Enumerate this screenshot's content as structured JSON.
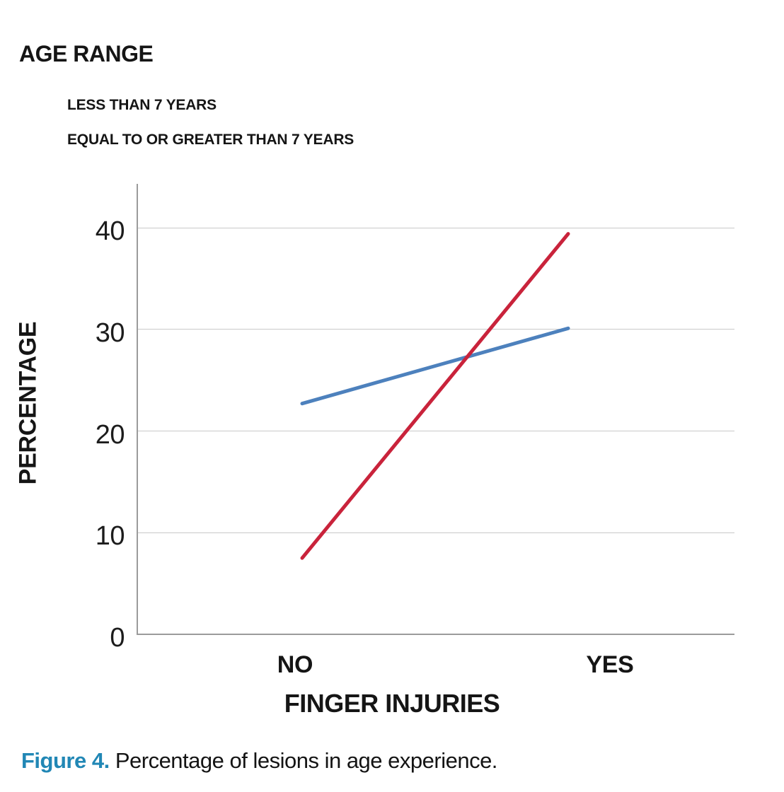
{
  "title": "AGE RANGE",
  "legend": {
    "items": [
      {
        "label": "LESS THAN 7 YEARS",
        "color": "#4d81bd"
      },
      {
        "label": "EQUAL TO OR GREATER THAN 7 YEARS",
        "color": "#c9233b"
      }
    ]
  },
  "chart_data": {
    "type": "line",
    "categories": [
      "NO",
      "YES"
    ],
    "series": [
      {
        "name": "LESS THAN 7 YEARS",
        "color": "#4d81bd",
        "values": [
          22.7,
          30.1
        ]
      },
      {
        "name": "EQUAL TO OR GREATER THAN 7 YEARS",
        "color": "#c9233b",
        "values": [
          7.5,
          39.4
        ]
      }
    ],
    "title": "AGE RANGE",
    "xlabel": "FINGER INJURIES",
    "ylabel": "PERCENTAGE",
    "yticks": [
      0,
      10,
      20,
      30,
      40
    ],
    "ylim": [
      0,
      44.3
    ],
    "grid": true,
    "legend_position": "top-left",
    "colors": {
      "gridline": "#c9c9c9",
      "axis": "#9b9b9b"
    }
  },
  "caption": {
    "label": "Figure 4.",
    "text": "Percentage of lesions in age experience."
  }
}
